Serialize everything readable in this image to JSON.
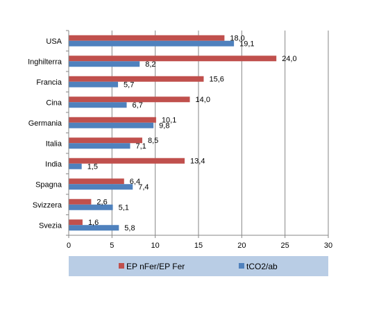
{
  "chart_data": {
    "type": "bar",
    "orientation": "horizontal",
    "categories": [
      "USA",
      "Inghilterra",
      "Francia",
      "Cina",
      "Germania",
      "Italia",
      "India",
      "Spagna",
      "Svizzera",
      "Svezia"
    ],
    "series": [
      {
        "name": "EP nFer/EP Fer",
        "color": "#c0504d",
        "values": [
          18.0,
          24.0,
          15.6,
          14.0,
          10.1,
          8.5,
          13.4,
          6.4,
          2.6,
          1.6
        ],
        "labels": [
          "18,0",
          "24,0",
          "15,6",
          "14,0",
          "10,1",
          "8,5",
          "13,4",
          "6,4",
          "2,6",
          "1,6"
        ]
      },
      {
        "name": "tCO2/ab",
        "color": "#4f81bd",
        "values": [
          19.1,
          8.2,
          5.7,
          6.7,
          9.8,
          7.1,
          1.5,
          7.4,
          5.1,
          5.8
        ],
        "labels": [
          "19,1",
          "8,2",
          "5,7",
          "6,7",
          "9,8",
          "7,1",
          "1,5",
          "7,4",
          "5,1",
          "5,8"
        ]
      }
    ],
    "xlim": [
      0,
      30
    ],
    "xticks": [
      0,
      5,
      10,
      15,
      20,
      25,
      30
    ],
    "grid": true,
    "legend_position": "bottom",
    "legend_background": "#b9cde5",
    "title": "",
    "xlabel": "",
    "ylabel": ""
  }
}
